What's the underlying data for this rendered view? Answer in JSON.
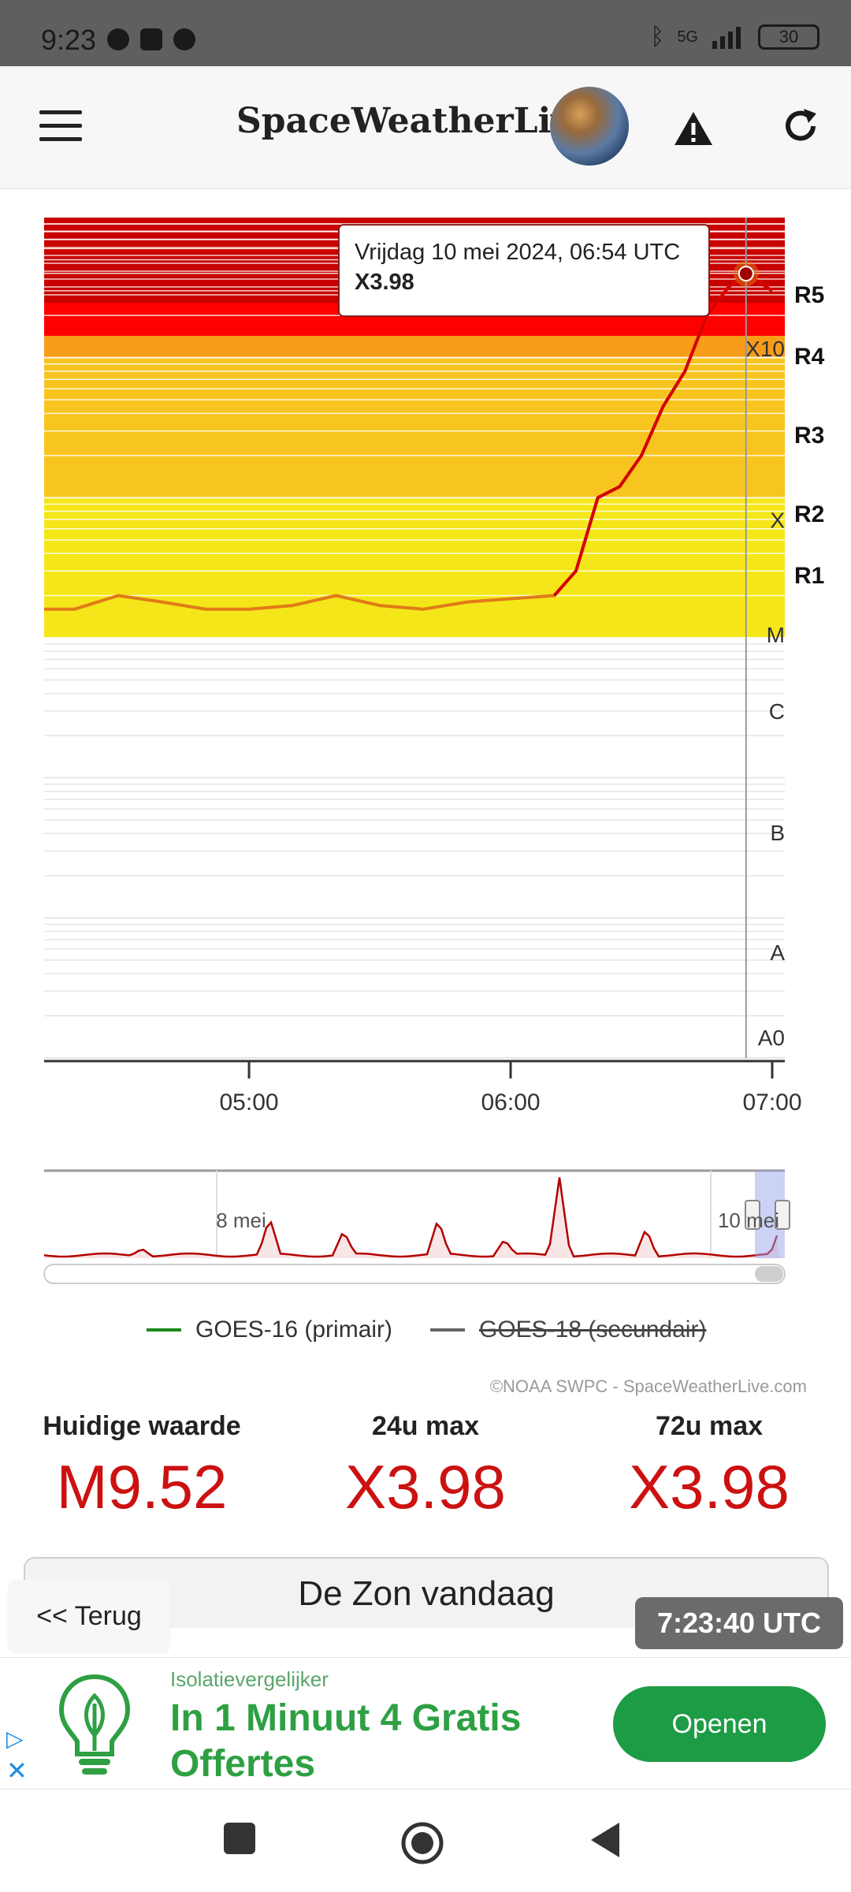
{
  "status_bar": {
    "time": "9:23",
    "network": "5G",
    "battery": "30"
  },
  "header": {
    "brand": "SpaceWeatherLive",
    "icons": [
      "menu-icon",
      "globe-logo",
      "warning-icon",
      "refresh-icon"
    ]
  },
  "chart_data": {
    "type": "line",
    "title": "",
    "xlabel": "",
    "ylabel": "",
    "y_scale": "log",
    "y_tick_labels": [
      "A0",
      "A",
      "B",
      "C",
      "M",
      "X",
      "X10"
    ],
    "x_tick_labels": [
      "05:00",
      "06:00",
      "07:00"
    ],
    "r_scale_labels": [
      "R5",
      "R4",
      "R3",
      "R2",
      "R1"
    ],
    "series": [
      {
        "name": "GOES-16 (primair)",
        "color": "#e07b16",
        "x": [
          "04:13",
          "04:20",
          "04:30",
          "04:40",
          "04:50",
          "05:00",
          "05:10",
          "05:20",
          "05:30",
          "05:40",
          "05:50",
          "06:00",
          "06:10",
          "06:15",
          "06:20",
          "06:25",
          "06:30",
          "06:35",
          "06:40",
          "06:45",
          "06:50",
          "06:54",
          "07:00"
        ],
        "y": [
          1.6e-05,
          1.6e-05,
          2e-05,
          1.8e-05,
          1.6e-05,
          1.6e-05,
          1.7e-05,
          2e-05,
          1.7e-05,
          1.6e-05,
          1.8e-05,
          1.9e-05,
          2e-05,
          3e-05,
          0.0001,
          0.00012,
          0.0002,
          0.00045,
          0.0008,
          0.002,
          0.0032,
          0.00398,
          0.003
        ]
      }
    ],
    "tooltip": {
      "date": "Vrijdag 10 mei 2024, 06:54 UTC",
      "value": "X3.98"
    },
    "navigator": {
      "labels": [
        "8 mei",
        "10 mei"
      ]
    },
    "legend": [
      {
        "label": "GOES-16 (primair)",
        "color": "#1a8a1a",
        "enabled": true
      },
      {
        "label": "GOES-18 (secundair)",
        "color": "#666666",
        "enabled": false
      }
    ],
    "credit": "©NOAA SWPC - SpaceWeatherLive.com"
  },
  "stats": {
    "current_label": "Huidige waarde",
    "current_value": "M9.52",
    "max24_label": "24u max",
    "max24_value": "X3.98",
    "max72_label": "72u max",
    "max72_value": "X3.98"
  },
  "section": {
    "title": "De Zon vandaag",
    "back_label": "<< Terug",
    "utc_time": "7:23:40 UTC"
  },
  "ad": {
    "advertiser": "Isolatievergelijker",
    "headline": "In 1 Minuut 4 Gratis Offertes",
    "cta": "Openen"
  }
}
